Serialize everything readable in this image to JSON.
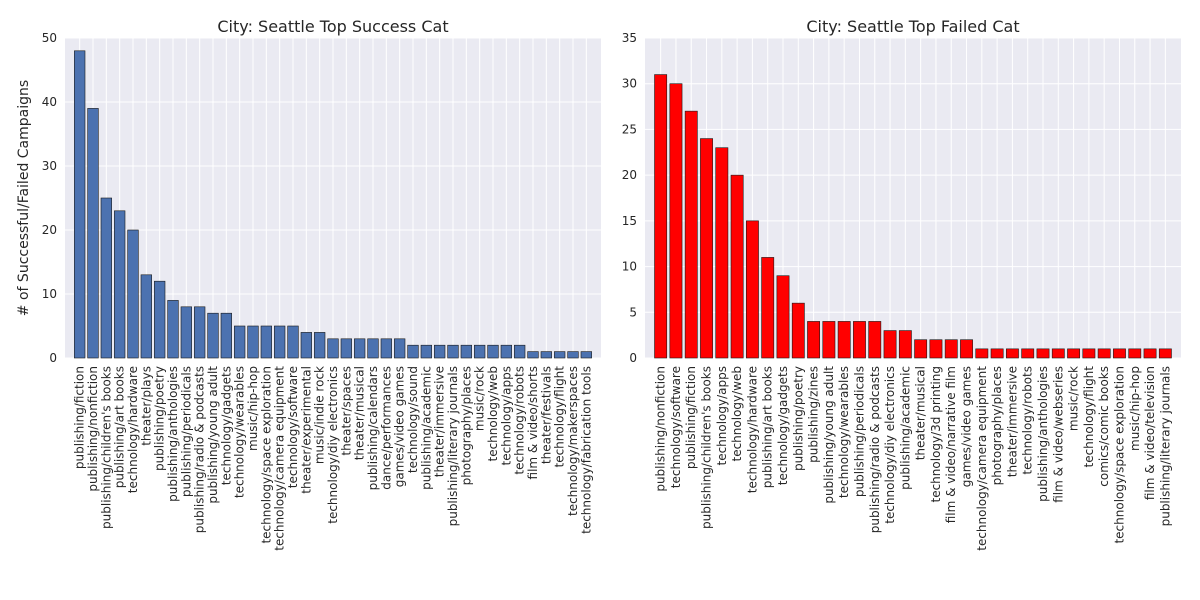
{
  "chart_data": [
    {
      "type": "bar",
      "title": "City: Seattle Top Success Cat",
      "xlabel": "",
      "ylabel": "# of Successful/Failed Campaigns",
      "ylim": [
        0,
        50
      ],
      "yticks": [
        0,
        10,
        20,
        30,
        40,
        50
      ],
      "grid": true,
      "color": "#4c72b0",
      "categories": [
        "publishing/fiction",
        "publishing/nonfiction",
        "publishing/children's books",
        "publishing/art books",
        "technology/hardware",
        "theater/plays",
        "publishing/poetry",
        "publishing/anthologies",
        "publishing/periodicals",
        "publishing/radio & podcasts",
        "publishing/young adult",
        "technology/gadgets",
        "technology/wearables",
        "music/hip-hop",
        "technology/space exploration",
        "technology/camera equipment",
        "technology/software",
        "theater/experimental",
        "music/indie rock",
        "technology/diy electronics",
        "theater/spaces",
        "theater/musical",
        "publishing/calendars",
        "dance/performances",
        "games/video games",
        "technology/sound",
        "publishing/academic",
        "theater/immersive",
        "publishing/literary journals",
        "photography/places",
        "music/rock",
        "technology/web",
        "technology/apps",
        "technology/robots",
        "film & video/shorts",
        "theater/festivals",
        "technology/flight",
        "technology/makerspaces",
        "technology/fabrication tools"
      ],
      "values": [
        48,
        39,
        25,
        23,
        20,
        13,
        12,
        9,
        8,
        8,
        7,
        7,
        5,
        5,
        5,
        5,
        5,
        4,
        4,
        3,
        3,
        3,
        3,
        3,
        3,
        2,
        2,
        2,
        2,
        2,
        2,
        2,
        2,
        2,
        1,
        1,
        1,
        1,
        1
      ]
    },
    {
      "type": "bar",
      "title": "City: Seattle Top Failed Cat",
      "xlabel": "",
      "ylabel": "",
      "ylim": [
        0,
        35
      ],
      "yticks": [
        0,
        5,
        10,
        15,
        20,
        25,
        30,
        35
      ],
      "grid": true,
      "color": "#ff0000",
      "categories": [
        "publishing/nonfiction",
        "technology/software",
        "publishing/fiction",
        "publishing/children's books",
        "technology/apps",
        "technology/web",
        "technology/hardware",
        "publishing/art books",
        "technology/gadgets",
        "publishing/poetry",
        "publishing/zines",
        "publishing/young adult",
        "technology/wearables",
        "publishing/periodicals",
        "publishing/radio & podcasts",
        "technology/diy electronics",
        "publishing/academic",
        "theater/musical",
        "technology/3d printing",
        "film & video/narrative film",
        "games/video games",
        "technology/camera equipment",
        "photography/places",
        "theater/immersive",
        "technology/robots",
        "publishing/anthologies",
        "film & video/webseries",
        "music/rock",
        "technology/flight",
        "comics/comic books",
        "technology/space exploration",
        "music/hip-hop",
        "film & video/television",
        "publishing/literary journals"
      ],
      "values": [
        31,
        30,
        27,
        24,
        23,
        20,
        15,
        11,
        9,
        6,
        4,
        4,
        4,
        4,
        4,
        3,
        3,
        2,
        2,
        2,
        2,
        1,
        1,
        1,
        1,
        1,
        1,
        1,
        1,
        1,
        1,
        1,
        1,
        1
      ]
    }
  ]
}
